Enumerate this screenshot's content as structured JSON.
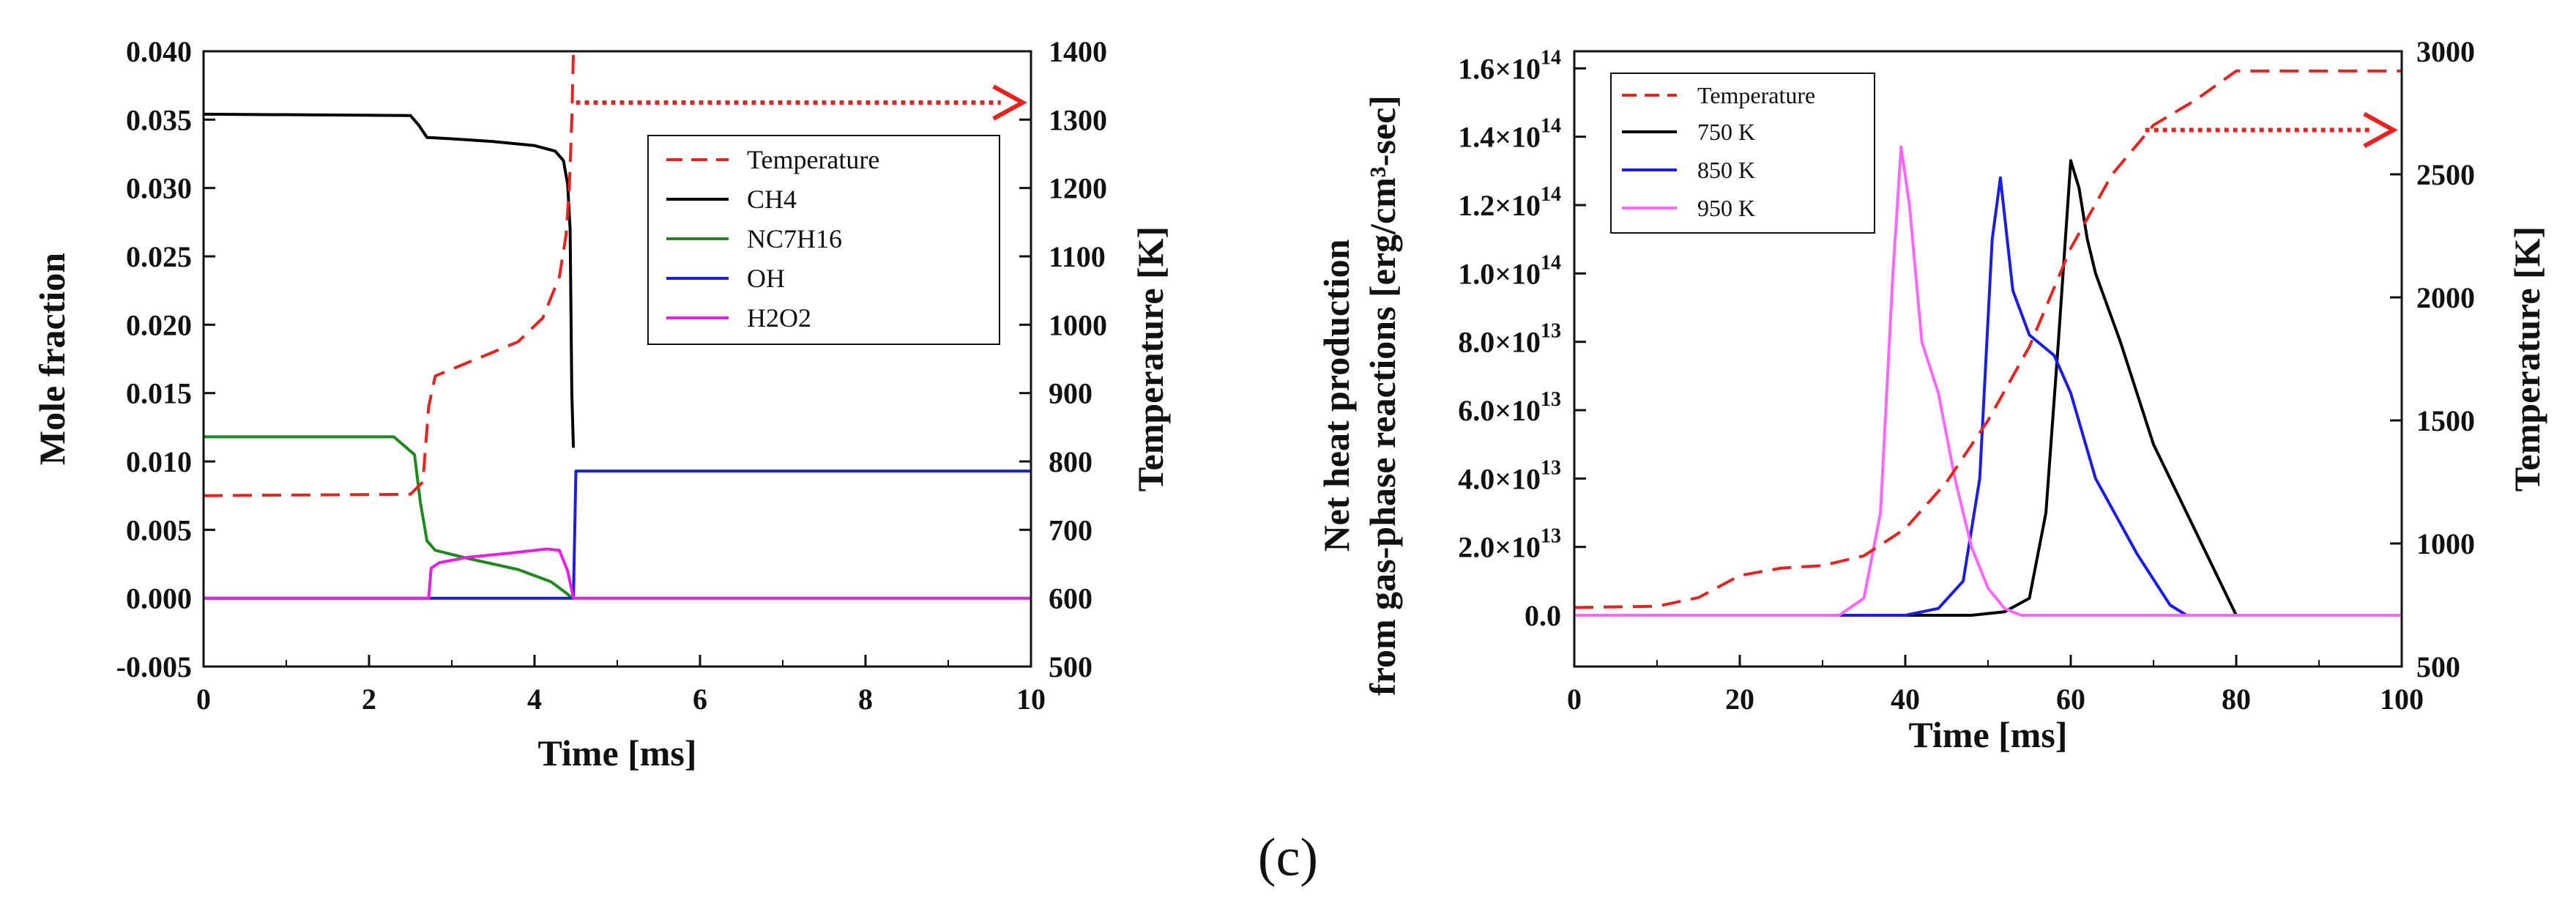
{
  "panel_label": "(c)",
  "chart_data": [
    {
      "type": "line",
      "xlabel": "Time [ms]",
      "ylabel": "Mole fraction",
      "y2label": "Temperature [K]",
      "xlim": [
        0,
        10
      ],
      "ylim": [
        -0.005,
        0.04
      ],
      "y2lim": [
        500,
        1400
      ],
      "xticks": [
        "0",
        "2",
        "4",
        "6",
        "8",
        "10"
      ],
      "yticks": [
        "-0.005",
        "0.000",
        "0.005",
        "0.010",
        "0.015",
        "0.020",
        "0.025",
        "0.030",
        "0.035",
        "0.040"
      ],
      "y2ticks": [
        "500",
        "600",
        "700",
        "800",
        "900",
        "1000",
        "1100",
        "1200",
        "1300",
        "1400"
      ],
      "legend_position": "upper-right",
      "legend": [
        "Temperature",
        "CH4",
        "NC7H16",
        "OH",
        "H2O2"
      ],
      "series": [
        {
          "name": "Temperature",
          "axis": "y2",
          "color": "#e8231f",
          "dash": "dashed",
          "x": [
            0,
            2.5,
            2.65,
            2.72,
            2.8,
            3.2,
            3.8,
            4.1,
            4.3,
            4.38,
            4.42,
            4.45,
            4.47
          ],
          "y": [
            750,
            752,
            770,
            880,
            925,
            945,
            975,
            1010,
            1070,
            1130,
            1200,
            1300,
            1400
          ]
        },
        {
          "name": "CH4",
          "axis": "y",
          "color": "#000000",
          "dash": "solid",
          "x": [
            0,
            2.5,
            2.6,
            2.7,
            3.0,
            3.5,
            4.0,
            4.25,
            4.35,
            4.4,
            4.43,
            4.45,
            4.47
          ],
          "y": [
            0.0354,
            0.0353,
            0.0346,
            0.0337,
            0.0336,
            0.0334,
            0.0331,
            0.0327,
            0.032,
            0.0303,
            0.027,
            0.015,
            0.011
          ]
        },
        {
          "name": "NC7H16",
          "axis": "y",
          "color": "#1e8a1e",
          "dash": "solid",
          "x": [
            0,
            2.3,
            2.55,
            2.62,
            2.7,
            2.8,
            3.2,
            3.8,
            4.2,
            4.4,
            4.45
          ],
          "y": [
            0.0118,
            0.0118,
            0.0105,
            0.007,
            0.0042,
            0.0035,
            0.0029,
            0.0021,
            0.0012,
            0.0003,
            0.0
          ]
        },
        {
          "name": "OH",
          "axis": "y",
          "color": "#1c1ce8",
          "dash": "solid",
          "x": [
            0,
            4.43,
            4.47,
            4.5,
            10
          ],
          "y": [
            0.0,
            0.0,
            0.0,
            0.0093,
            0.0093
          ]
        },
        {
          "name": "H2O2",
          "axis": "y",
          "color": "#e81ee8",
          "dash": "solid",
          "x": [
            0,
            2.72,
            2.75,
            2.85,
            3.2,
            3.7,
            4.15,
            4.3,
            4.4,
            4.47,
            10
          ],
          "y": [
            0.0,
            0.0,
            0.0022,
            0.0026,
            0.003,
            0.0033,
            0.0036,
            0.0035,
            0.002,
            0.0,
            0.0
          ]
        }
      ],
      "annotations": [
        {
          "type": "arrow-right",
          "series": "Temperature",
          "x_from": 4.5,
          "x_to": 9.9,
          "y2": 1325,
          "color": "#e8231f"
        }
      ]
    },
    {
      "type": "line",
      "xlabel": "Time [ms]",
      "ylabel_lines": [
        "Net heat production",
        "from gas-phase reactions [erg/cm³-sec]"
      ],
      "y2label": "Temperature [K]",
      "xlim": [
        0,
        100
      ],
      "ylim": [
        -15000000000000.0,
        165000000000000.0
      ],
      "y2lim": [
        500,
        3000
      ],
      "xticks": [
        "0",
        "20",
        "40",
        "60",
        "80",
        "100"
      ],
      "yticks": [
        {
          "value": 0,
          "base": "0.0",
          "exp": ""
        },
        {
          "value": 20000000000000.0,
          "base": "2.0×10",
          "exp": "13"
        },
        {
          "value": 40000000000000.0,
          "base": "4.0×10",
          "exp": "13"
        },
        {
          "value": 60000000000000.0,
          "base": "6.0×10",
          "exp": "13"
        },
        {
          "value": 80000000000000.0,
          "base": "8.0×10",
          "exp": "13"
        },
        {
          "value": 100000000000000.0,
          "base": "1.0×10",
          "exp": "14"
        },
        {
          "value": 120000000000000.0,
          "base": "1.2×10",
          "exp": "14"
        },
        {
          "value": 140000000000000.0,
          "base": "1.4×10",
          "exp": "14"
        },
        {
          "value": 160000000000000.0,
          "base": "1.6×10",
          "exp": "14"
        }
      ],
      "y2ticks": [
        "500",
        "1000",
        "1500",
        "2000",
        "2500",
        "3000"
      ],
      "legend_position": "upper-left",
      "legend": [
        "Temperature",
        "750 K",
        "850 K",
        "950 K"
      ],
      "series": [
        {
          "name": "Temperature",
          "axis": "y2",
          "color": "#e8231f",
          "dash": "dashed",
          "x": [
            0,
            10,
            15,
            20,
            25,
            30,
            35,
            40,
            45,
            50,
            55,
            60,
            65,
            70,
            75,
            80,
            90,
            100
          ],
          "y": [
            740,
            745,
            780,
            870,
            900,
            910,
            950,
            1060,
            1250,
            1500,
            1800,
            2200,
            2500,
            2700,
            2800,
            2920,
            2920,
            2920
          ]
        },
        {
          "name": "750 K",
          "axis": "y",
          "color": "#000000",
          "dash": "solid",
          "x": [
            0,
            48,
            52,
            55,
            57,
            58.5,
            60,
            61,
            62,
            63,
            66,
            70,
            74,
            77,
            80,
            100
          ],
          "y": [
            0,
            0,
            1000000000000.0,
            5000000000000.0,
            30000000000000.0,
            80000000000000.0,
            133000000000000.0,
            125000000000000.0,
            110000000000000.0,
            100000000000000.0,
            80000000000000.0,
            50000000000000.0,
            30000000000000.0,
            15000000000000.0,
            0,
            0
          ]
        },
        {
          "name": "850 K",
          "axis": "y",
          "color": "#1c1ce8",
          "dash": "solid",
          "x": [
            0,
            40,
            44,
            47,
            49,
            50.5,
            51.5,
            53,
            55,
            58,
            60,
            63,
            68,
            72,
            74,
            100
          ],
          "y": [
            0,
            0,
            2000000000000.0,
            10000000000000.0,
            40000000000000.0,
            110000000000000.0,
            128000000000000.0,
            95000000000000.0,
            82000000000000.0,
            76000000000000.0,
            65000000000000.0,
            40000000000000.0,
            18000000000000.0,
            3000000000000.0,
            0,
            0
          ]
        },
        {
          "name": "950 K",
          "axis": "y",
          "color": "#ff66ff",
          "dash": "solid",
          "x": [
            0,
            32,
            35,
            37,
            38.5,
            39.5,
            40.5,
            42,
            44,
            46,
            48,
            50,
            52,
            54,
            100
          ],
          "y": [
            0,
            0,
            5000000000000.0,
            30000000000000.0,
            100000000000000.0,
            137000000000000.0,
            120000000000000.0,
            80000000000000.0,
            65000000000000.0,
            40000000000000.0,
            20000000000000.0,
            8000000000000.0,
            2000000000000.0,
            0,
            0
          ]
        }
      ],
      "annotations": [
        {
          "type": "arrow-right",
          "series": "Temperature",
          "x_from": 69,
          "x_to": 99,
          "y2": 2680,
          "color": "#e8231f"
        }
      ]
    }
  ]
}
